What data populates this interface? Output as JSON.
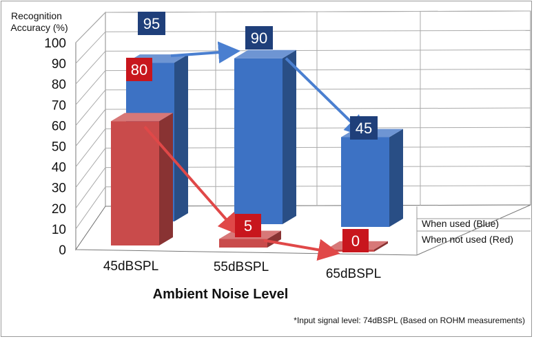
{
  "chart_data": {
    "type": "bar",
    "ylabel_line1": "Recognition",
    "ylabel_line2": "Accuracy (%)",
    "xlabel": "Ambient Noise Level",
    "categories": [
      "45dBSPL",
      "55dBSPL",
      "65dBSPL"
    ],
    "ylim": [
      0,
      100
    ],
    "yticks": [
      "0",
      "10",
      "20",
      "30",
      "40",
      "50",
      "60",
      "70",
      "80",
      "90",
      "100"
    ],
    "grid": true,
    "series": [
      {
        "name": "When used (Blue)",
        "values": [
          95,
          90,
          45
        ],
        "color": "#3d72c4",
        "label_bg": "#1f3f7a"
      },
      {
        "name": "When not used (Red)",
        "values": [
          80,
          5,
          0
        ],
        "color": "#c94b4b",
        "label_bg": "#c8161d"
      }
    ],
    "legend_position": "right",
    "footnote": "*Input signal level: 74dBSPL (Based on ROHM measurements)"
  }
}
